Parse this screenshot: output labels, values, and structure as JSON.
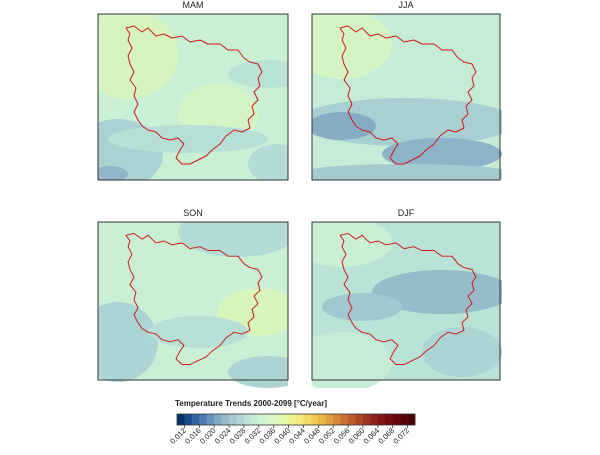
{
  "panels": [
    {
      "title": "MAM"
    },
    {
      "title": "JJA"
    },
    {
      "title": "SON"
    },
    {
      "title": "DJF"
    }
  ],
  "colorbar": {
    "title": "Temperature Trends 2000-2099   [°C/year]",
    "range": [
      0.01,
      0.074
    ],
    "ticks": [
      0.012,
      0.016,
      {
        "value": 0.02,
        "label": "0.020"
      },
      0.024,
      0.028,
      0.032,
      0.036,
      {
        "value": 0.04,
        "label": "0.040"
      },
      0.044,
      0.048,
      0.052,
      0.056,
      {
        "value": 0.06,
        "label": "0.060"
      },
      0.064,
      0.068,
      0.072
    ],
    "colors": [
      "#08306b",
      "#1d4a8c",
      "#3563a0",
      "#4e7bb0",
      "#6a93be",
      "#84a9c6",
      "#97bccb",
      "#a6cbd0",
      "#b3d8d4",
      "#bfe3d6",
      "#c9ecd6",
      "#d2f3d2",
      "#d8f6c8",
      "#dff7ba",
      "#e6f5a6",
      "#eef290",
      "#f3e97a",
      "#f3dc66",
      "#efcb55",
      "#e8b748",
      "#dfa03f",
      "#d48838",
      "#c87032",
      "#bb5a2c",
      "#ad4526",
      "#9f3220",
      "#90221a",
      "#821514",
      "#740b0e",
      "#66050a",
      "#580307",
      "#4a0104"
    ]
  }
}
